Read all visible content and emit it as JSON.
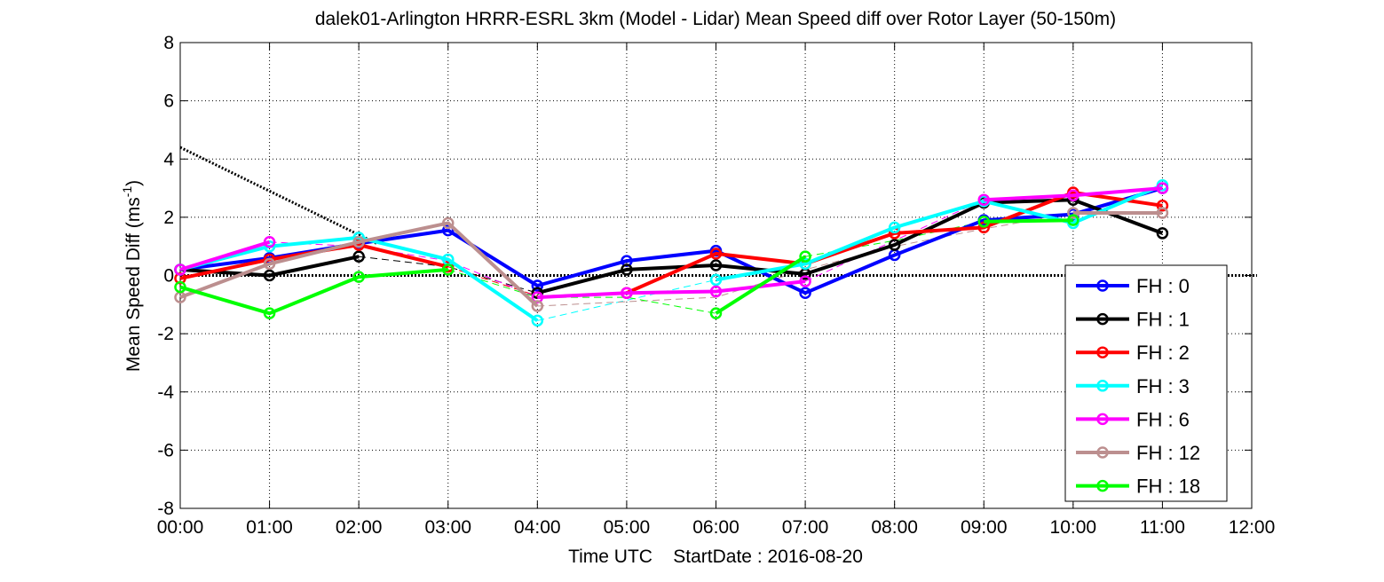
{
  "chart_data": {
    "type": "line",
    "title": "dalek01-Arlington HRRR-ESRL 3km (Model - Lidar) Mean Speed diff over Rotor Layer (50-150m)",
    "xlabel": "Time UTC    StartDate : 2016-08-20",
    "ylabel_main": "Mean Speed Diff (ms",
    "ylabel_sup": "-1",
    "ylabel_end": ")",
    "x_tick_labels": [
      "00:00",
      "01:00",
      "02:00",
      "03:00",
      "04:00",
      "05:00",
      "06:00",
      "07:00",
      "08:00",
      "09:00",
      "10:00",
      "11:00",
      "12:00"
    ],
    "y_ticks": [
      -8,
      -6,
      -4,
      -2,
      0,
      2,
      4,
      6,
      8
    ],
    "xlim": [
      0,
      12
    ],
    "ylim": [
      -8,
      8
    ],
    "grid": true,
    "legend_position": "bottom-right",
    "zero_line": {
      "y": 0,
      "style": "dotted"
    },
    "trend_line": {
      "x": [
        0,
        2.2
      ],
      "y": [
        4.4,
        1.1
      ],
      "style": "dotted"
    },
    "series": [
      {
        "name": "FH : 0",
        "color": "#0000ff",
        "solid": [
          [
            [
              0,
              0.2
            ],
            [
              1,
              0.6
            ],
            [
              2,
              1.1
            ],
            [
              3,
              1.55
            ],
            [
              4,
              -0.35
            ],
            [
              5,
              0.5
            ],
            [
              6,
              0.85
            ],
            [
              7,
              -0.6
            ],
            [
              8,
              0.7
            ],
            [
              9,
              1.9
            ],
            [
              10,
              2.1
            ],
            [
              11,
              3.0
            ]
          ]
        ],
        "dashed": []
      },
      {
        "name": "FH : 1",
        "color": "#000000",
        "solid": [
          [
            [
              0,
              0.2
            ],
            [
              1,
              0.0
            ],
            [
              2,
              0.65
            ]
          ],
          [
            [
              4,
              -0.6
            ],
            [
              5,
              0.2
            ],
            [
              6,
              0.35
            ],
            [
              7,
              0.05
            ],
            [
              8,
              1.05
            ],
            [
              9,
              2.5
            ],
            [
              10,
              2.6
            ],
            [
              11,
              1.45
            ]
          ]
        ],
        "dashed": [
          [
            [
              2,
              0.65
            ],
            [
              3,
              0.3
            ],
            [
              4,
              -0.6
            ]
          ]
        ]
      },
      {
        "name": "FH : 2",
        "color": "#ff0000",
        "solid": [
          [
            [
              0,
              -0.1
            ],
            [
              1,
              0.55
            ],
            [
              2,
              1.05
            ],
            [
              3,
              0.3
            ]
          ],
          [
            [
              5,
              -0.6
            ],
            [
              6,
              0.75
            ],
            [
              7,
              0.4
            ],
            [
              8,
              1.45
            ],
            [
              9,
              1.65
            ],
            [
              10,
              2.85
            ],
            [
              11,
              2.4
            ]
          ]
        ],
        "dashed": [
          [
            [
              3,
              0.3
            ],
            [
              4,
              -0.7
            ],
            [
              5,
              -0.6
            ]
          ]
        ]
      },
      {
        "name": "FH : 3",
        "color": "#00ffff",
        "solid": [
          [
            [
              0,
              0.2
            ],
            [
              1,
              1.0
            ],
            [
              2,
              1.3
            ],
            [
              3,
              0.55
            ],
            [
              4,
              -1.55
            ]
          ],
          [
            [
              6,
              -0.15
            ],
            [
              7,
              0.4
            ],
            [
              8,
              1.65
            ],
            [
              9,
              2.55
            ],
            [
              10,
              1.8
            ],
            [
              11,
              3.1
            ]
          ]
        ],
        "dashed": [
          [
            [
              4,
              -1.55
            ],
            [
              5,
              -0.85
            ],
            [
              6,
              -0.15
            ]
          ]
        ]
      },
      {
        "name": "FH : 6",
        "color": "#ff00ff",
        "solid": [
          [
            [
              0,
              0.2
            ],
            [
              1,
              1.15
            ]
          ],
          [
            [
              4,
              -0.75
            ],
            [
              5,
              -0.6
            ],
            [
              6,
              -0.55
            ],
            [
              7,
              -0.2
            ]
          ],
          [
            [
              9,
              2.6
            ],
            [
              10,
              2.75
            ],
            [
              11,
              3.0
            ]
          ]
        ],
        "dashed": [
          [
            [
              1,
              1.15
            ],
            [
              2,
              1.0
            ],
            [
              3,
              0.5
            ],
            [
              4,
              -0.75
            ]
          ],
          [
            [
              7,
              -0.2
            ],
            [
              8,
              1.2
            ],
            [
              9,
              2.6
            ]
          ]
        ]
      },
      {
        "name": "FH : 12",
        "color": "#bc8f8f",
        "solid": [
          [
            [
              0,
              -0.75
            ],
            [
              1,
              0.4
            ],
            [
              2,
              1.15
            ],
            [
              3,
              1.8
            ],
            [
              4,
              -1.05
            ]
          ],
          [
            [
              10,
              2.15
            ],
            [
              11,
              2.15
            ]
          ]
        ],
        "dashed": [
          [
            [
              4,
              -1.05
            ],
            [
              5,
              -0.9
            ],
            [
              6,
              -0.75
            ],
            [
              7,
              0.2
            ],
            [
              8,
              1.0
            ],
            [
              9,
              1.6
            ],
            [
              10,
              2.15
            ]
          ]
        ]
      },
      {
        "name": "FH : 18",
        "color": "#00ff00",
        "solid": [
          [
            [
              0,
              -0.4
            ],
            [
              1,
              -1.3
            ],
            [
              2,
              -0.05
            ],
            [
              3,
              0.2
            ]
          ],
          [
            [
              6,
              -1.3
            ],
            [
              7,
              0.65
            ]
          ],
          [
            [
              9,
              1.85
            ],
            [
              10,
              1.9
            ]
          ]
        ],
        "dashed": [
          [
            [
              3,
              0.2
            ],
            [
              4,
              -0.75
            ],
            [
              5,
              -0.75
            ],
            [
              6,
              -1.3
            ]
          ],
          [
            [
              7,
              0.65
            ],
            [
              8,
              1.2
            ],
            [
              9,
              1.85
            ]
          ]
        ]
      }
    ]
  }
}
